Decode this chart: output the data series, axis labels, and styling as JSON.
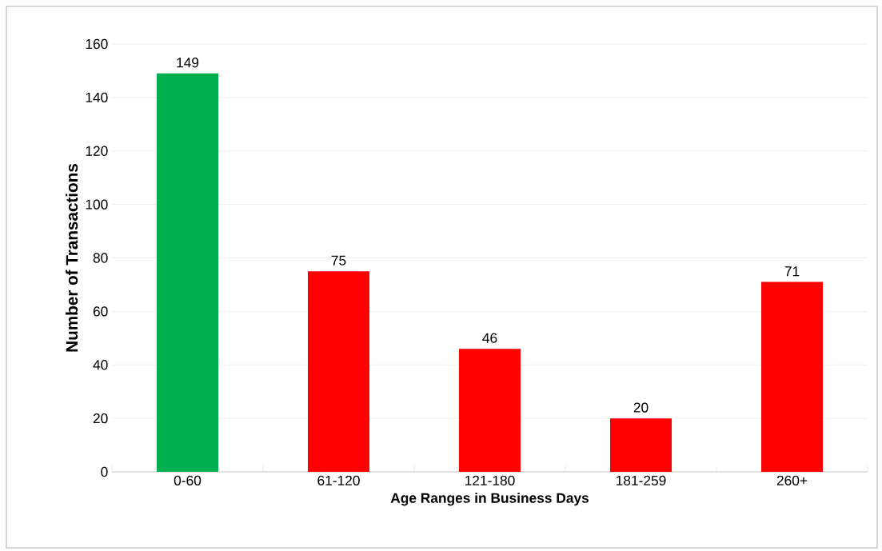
{
  "chart_data": {
    "type": "bar",
    "xlabel": "Age Ranges in Business Days",
    "ylabel": "Number of Transactions",
    "categories": [
      "0-60",
      "61-120",
      "121-180",
      "181-259",
      "260+"
    ],
    "values": [
      149,
      75,
      46,
      20,
      71
    ],
    "colors": [
      "#00b050",
      "#ff0000",
      "#ff0000",
      "#ff0000",
      "#ff0000"
    ],
    "ylim": [
      0,
      160
    ],
    "yticks": [
      0,
      20,
      40,
      60,
      80,
      100,
      120,
      140,
      160
    ],
    "grid": "y",
    "data_labels": true
  }
}
